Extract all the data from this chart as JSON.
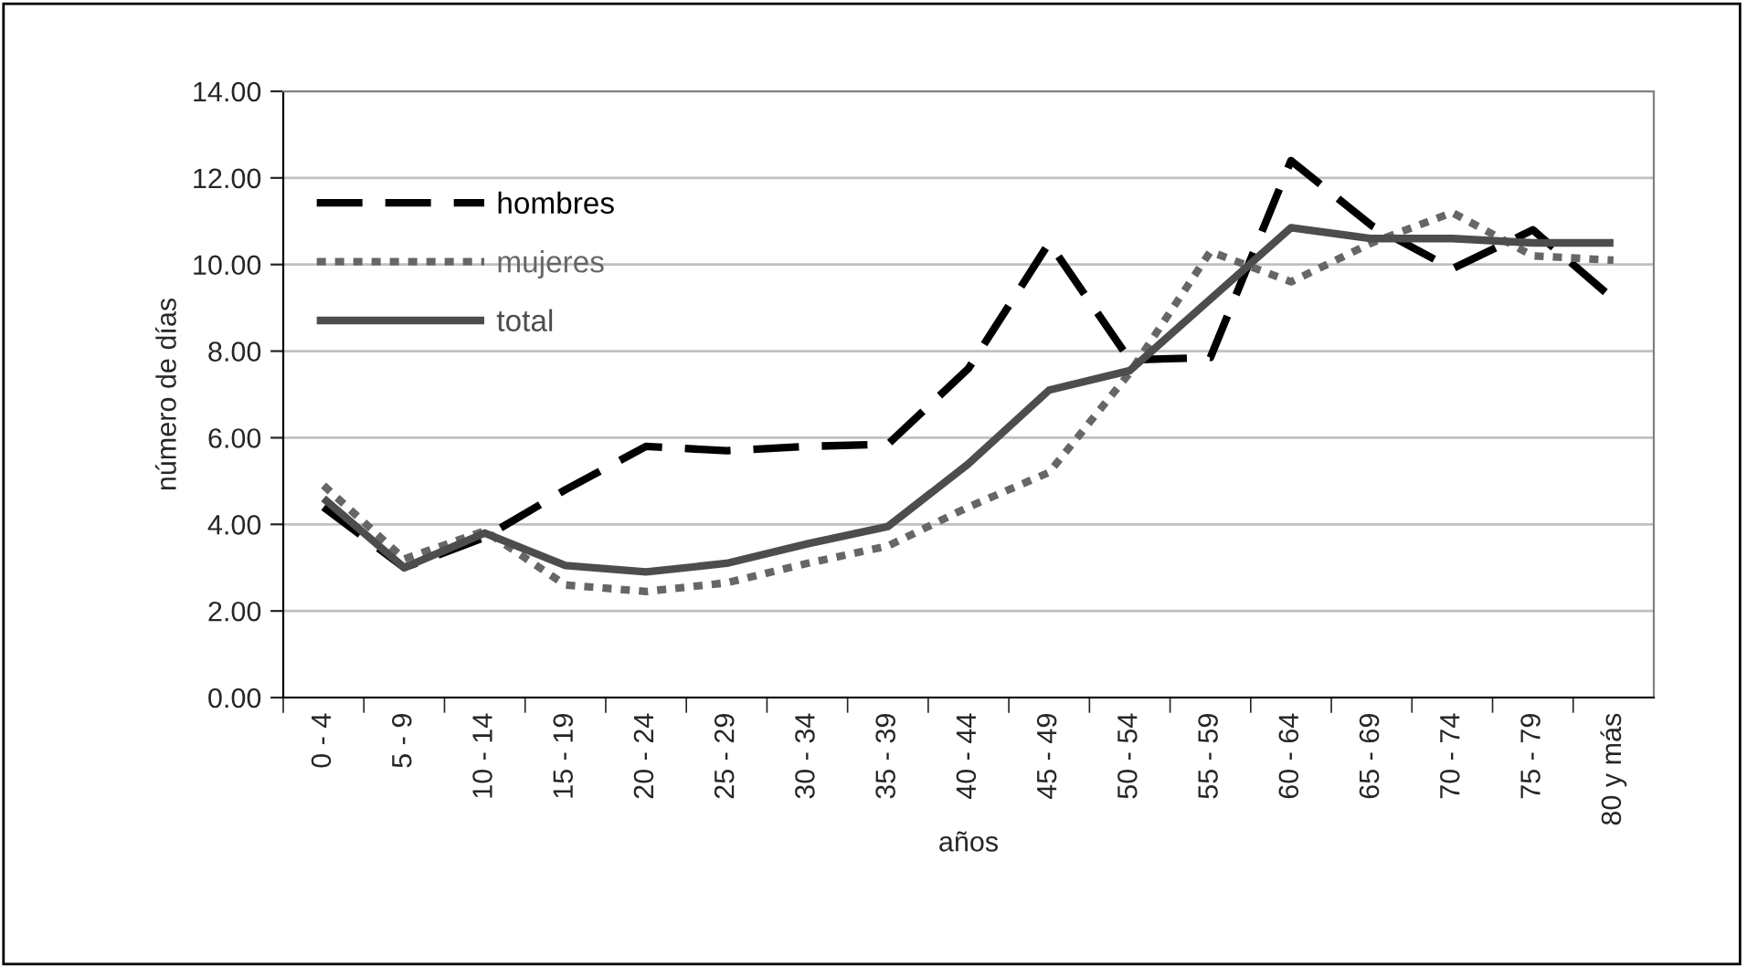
{
  "chart_data": {
    "type": "line",
    "xlabel": "años",
    "ylabel": "número de días",
    "categories": [
      "0 - 4",
      "5 - 9",
      "10 - 14",
      "15 - 19",
      "20 - 24",
      "25 - 29",
      "30 - 34",
      "35 - 39",
      "40 - 44",
      "45 - 49",
      "50 - 54",
      "55 - 59",
      "60 - 64",
      "65 - 69",
      "70 - 74",
      "75 - 79",
      "80 y más"
    ],
    "series": [
      {
        "name": "hombres",
        "color": "#000000",
        "line_style": "dashed",
        "values": [
          4.4,
          3.0,
          3.7,
          4.8,
          5.8,
          5.7,
          5.8,
          5.85,
          7.6,
          10.5,
          7.8,
          7.85,
          12.4,
          10.9,
          9.9,
          10.8,
          9.2
        ]
      },
      {
        "name": "mujeres",
        "color": "#666666",
        "line_style": "dotted",
        "values": [
          4.9,
          3.2,
          3.85,
          2.6,
          2.45,
          2.65,
          3.1,
          3.5,
          4.4,
          5.2,
          7.5,
          10.3,
          9.6,
          10.5,
          11.2,
          10.2,
          10.1
        ]
      },
      {
        "name": "total",
        "color": "#4d4d4d",
        "line_style": "solid",
        "values": [
          4.6,
          3.0,
          3.8,
          3.05,
          2.9,
          3.1,
          3.55,
          3.95,
          5.4,
          7.1,
          7.55,
          9.2,
          10.85,
          10.6,
          10.6,
          10.5,
          10.5
        ]
      }
    ],
    "ylim": [
      0,
      14
    ],
    "yticks": [
      {
        "value": 0,
        "label": "0.00"
      },
      {
        "value": 2,
        "label": "2.00"
      },
      {
        "value": 4,
        "label": "4.00"
      },
      {
        "value": 6,
        "label": "6.00"
      },
      {
        "value": 8,
        "label": "8.00"
      },
      {
        "value": 10,
        "label": "10.00"
      },
      {
        "value": 12,
        "label": "12.00"
      },
      {
        "value": 14,
        "label": "14.00"
      }
    ],
    "grid": "y",
    "legend": "top left",
    "marker": "none"
  }
}
